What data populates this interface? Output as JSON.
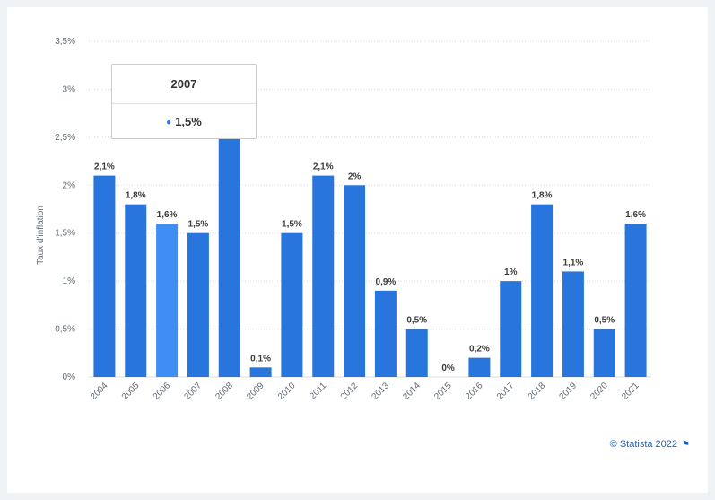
{
  "chart_data": {
    "type": "bar",
    "categories": [
      "2004",
      "2005",
      "2006",
      "2007",
      "2008",
      "2009",
      "2010",
      "2011",
      "2012",
      "2013",
      "2014",
      "2015",
      "2016",
      "2017",
      "2018",
      "2019",
      "2020",
      "2021"
    ],
    "values": [
      2.1,
      1.8,
      1.6,
      1.5,
      2.8,
      0.1,
      1.5,
      2.1,
      2.0,
      0.9,
      0.5,
      0.0,
      0.2,
      1.0,
      1.8,
      1.1,
      0.5,
      1.6
    ],
    "data_labels": [
      "2,1%",
      "1,8%",
      "1,6%",
      "1,5%",
      "",
      "0,1%",
      "1,5%",
      "2,1%",
      "2%",
      "0,9%",
      "0,5%",
      "0%",
      "0,2%",
      "1%",
      "1,8%",
      "1,1%",
      "0,5%",
      "1,6%"
    ],
    "highlighted_category": "2006",
    "ylabel": "Taux d'inflation",
    "xlabel": "",
    "ylim": [
      0,
      3.5
    ],
    "yticks": [
      0,
      0.5,
      1,
      1.5,
      2,
      2.5,
      3,
      3.5
    ],
    "ytick_labels": [
      "0%",
      "0,5%",
      "1%",
      "1,5%",
      "2%",
      "2,5%",
      "3%",
      "3,5%"
    ],
    "grid": true,
    "colors": {
      "bar": "#2876dd",
      "bar_highlight": "#3f8ef5",
      "grid": "#d8dde2"
    }
  },
  "tooltip": {
    "title": "2007",
    "value": "1,5%"
  },
  "credit": "© Statista 2022"
}
